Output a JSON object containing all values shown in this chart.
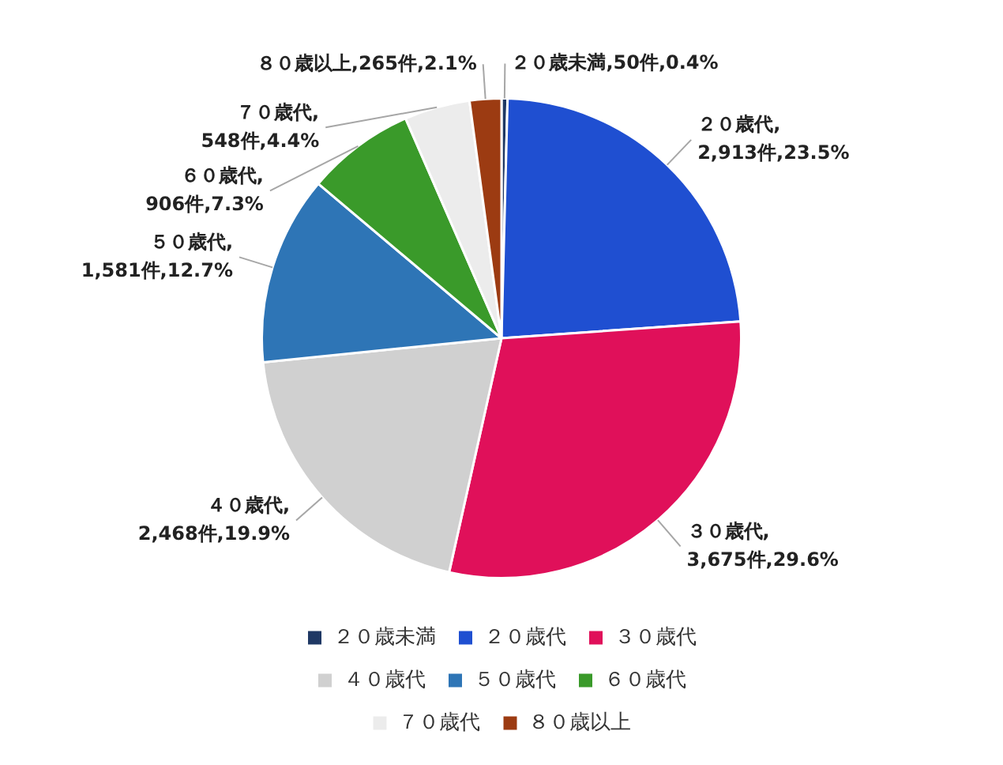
{
  "chart_data": {
    "type": "pie",
    "categories": [
      "２０歳未満",
      "２０歳代",
      "３０歳代",
      "４０歳代",
      "５０歳代",
      "６０歳代",
      "７０歳代",
      "８０歳以上"
    ],
    "values": [
      50,
      2913,
      3675,
      2468,
      1581,
      906,
      548,
      265
    ],
    "value_labels": [
      "２０歳未満,50件,0.4%",
      "２０歳代,\n2,913件,23.5%",
      "３０歳代,\n3,675件,29.6%",
      "４０歳代,\n2,468件,19.9%",
      "５０歳代,\n1,581件,12.7%",
      "６０歳代,\n906件,7.3%",
      "７０歳代,\n548件,4.4%",
      "８０歳以上,265件,2.1%"
    ],
    "colors": [
      "#1f3864",
      "#1f4fd1",
      "#e0105a",
      "#d0d0d0",
      "#2e75b6",
      "#3a9a2a",
      "#ececec",
      "#9c3b12"
    ],
    "legend": "bottom"
  }
}
